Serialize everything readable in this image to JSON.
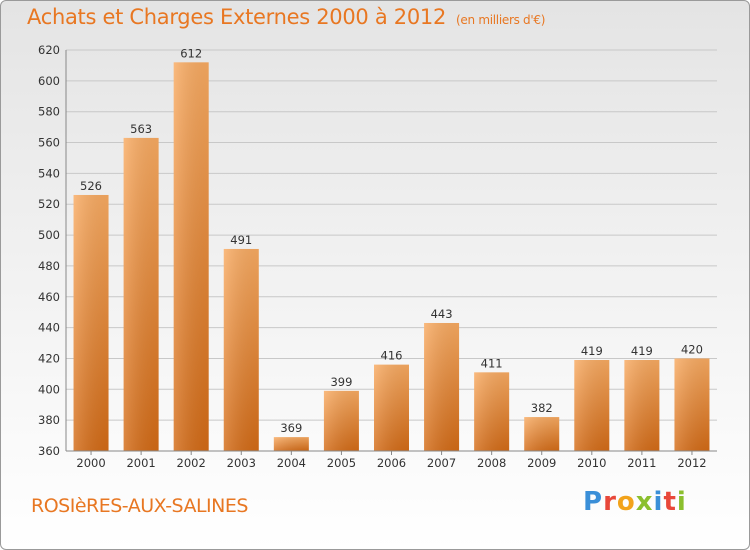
{
  "title": "Achats et Charges Externes 2000 à 2012",
  "unit": "(en milliers d'€)",
  "commune": "ROSIèRES-AUX-SALINES",
  "brand": "Proxiti",
  "colors": {
    "accent": "#e87722",
    "bar_light": "#f7a55a",
    "bar_dark": "#d9731c",
    "grid": "#cccccc"
  },
  "chart_data": {
    "type": "bar",
    "title": "Achats et Charges Externes 2000 à 2012",
    "subtitle": "(en milliers d'€)",
    "categories": [
      "2000",
      "2001",
      "2002",
      "2003",
      "2004",
      "2005",
      "2006",
      "2007",
      "2008",
      "2009",
      "2010",
      "2011",
      "2012"
    ],
    "values": [
      526,
      563,
      612,
      491,
      369,
      399,
      416,
      443,
      411,
      382,
      419,
      419,
      420
    ],
    "xlabel": "",
    "ylabel": "",
    "ylim": [
      360,
      620
    ],
    "yticks": [
      360,
      380,
      400,
      420,
      440,
      460,
      480,
      500,
      520,
      540,
      560,
      580,
      600,
      620
    ],
    "grid": true
  }
}
